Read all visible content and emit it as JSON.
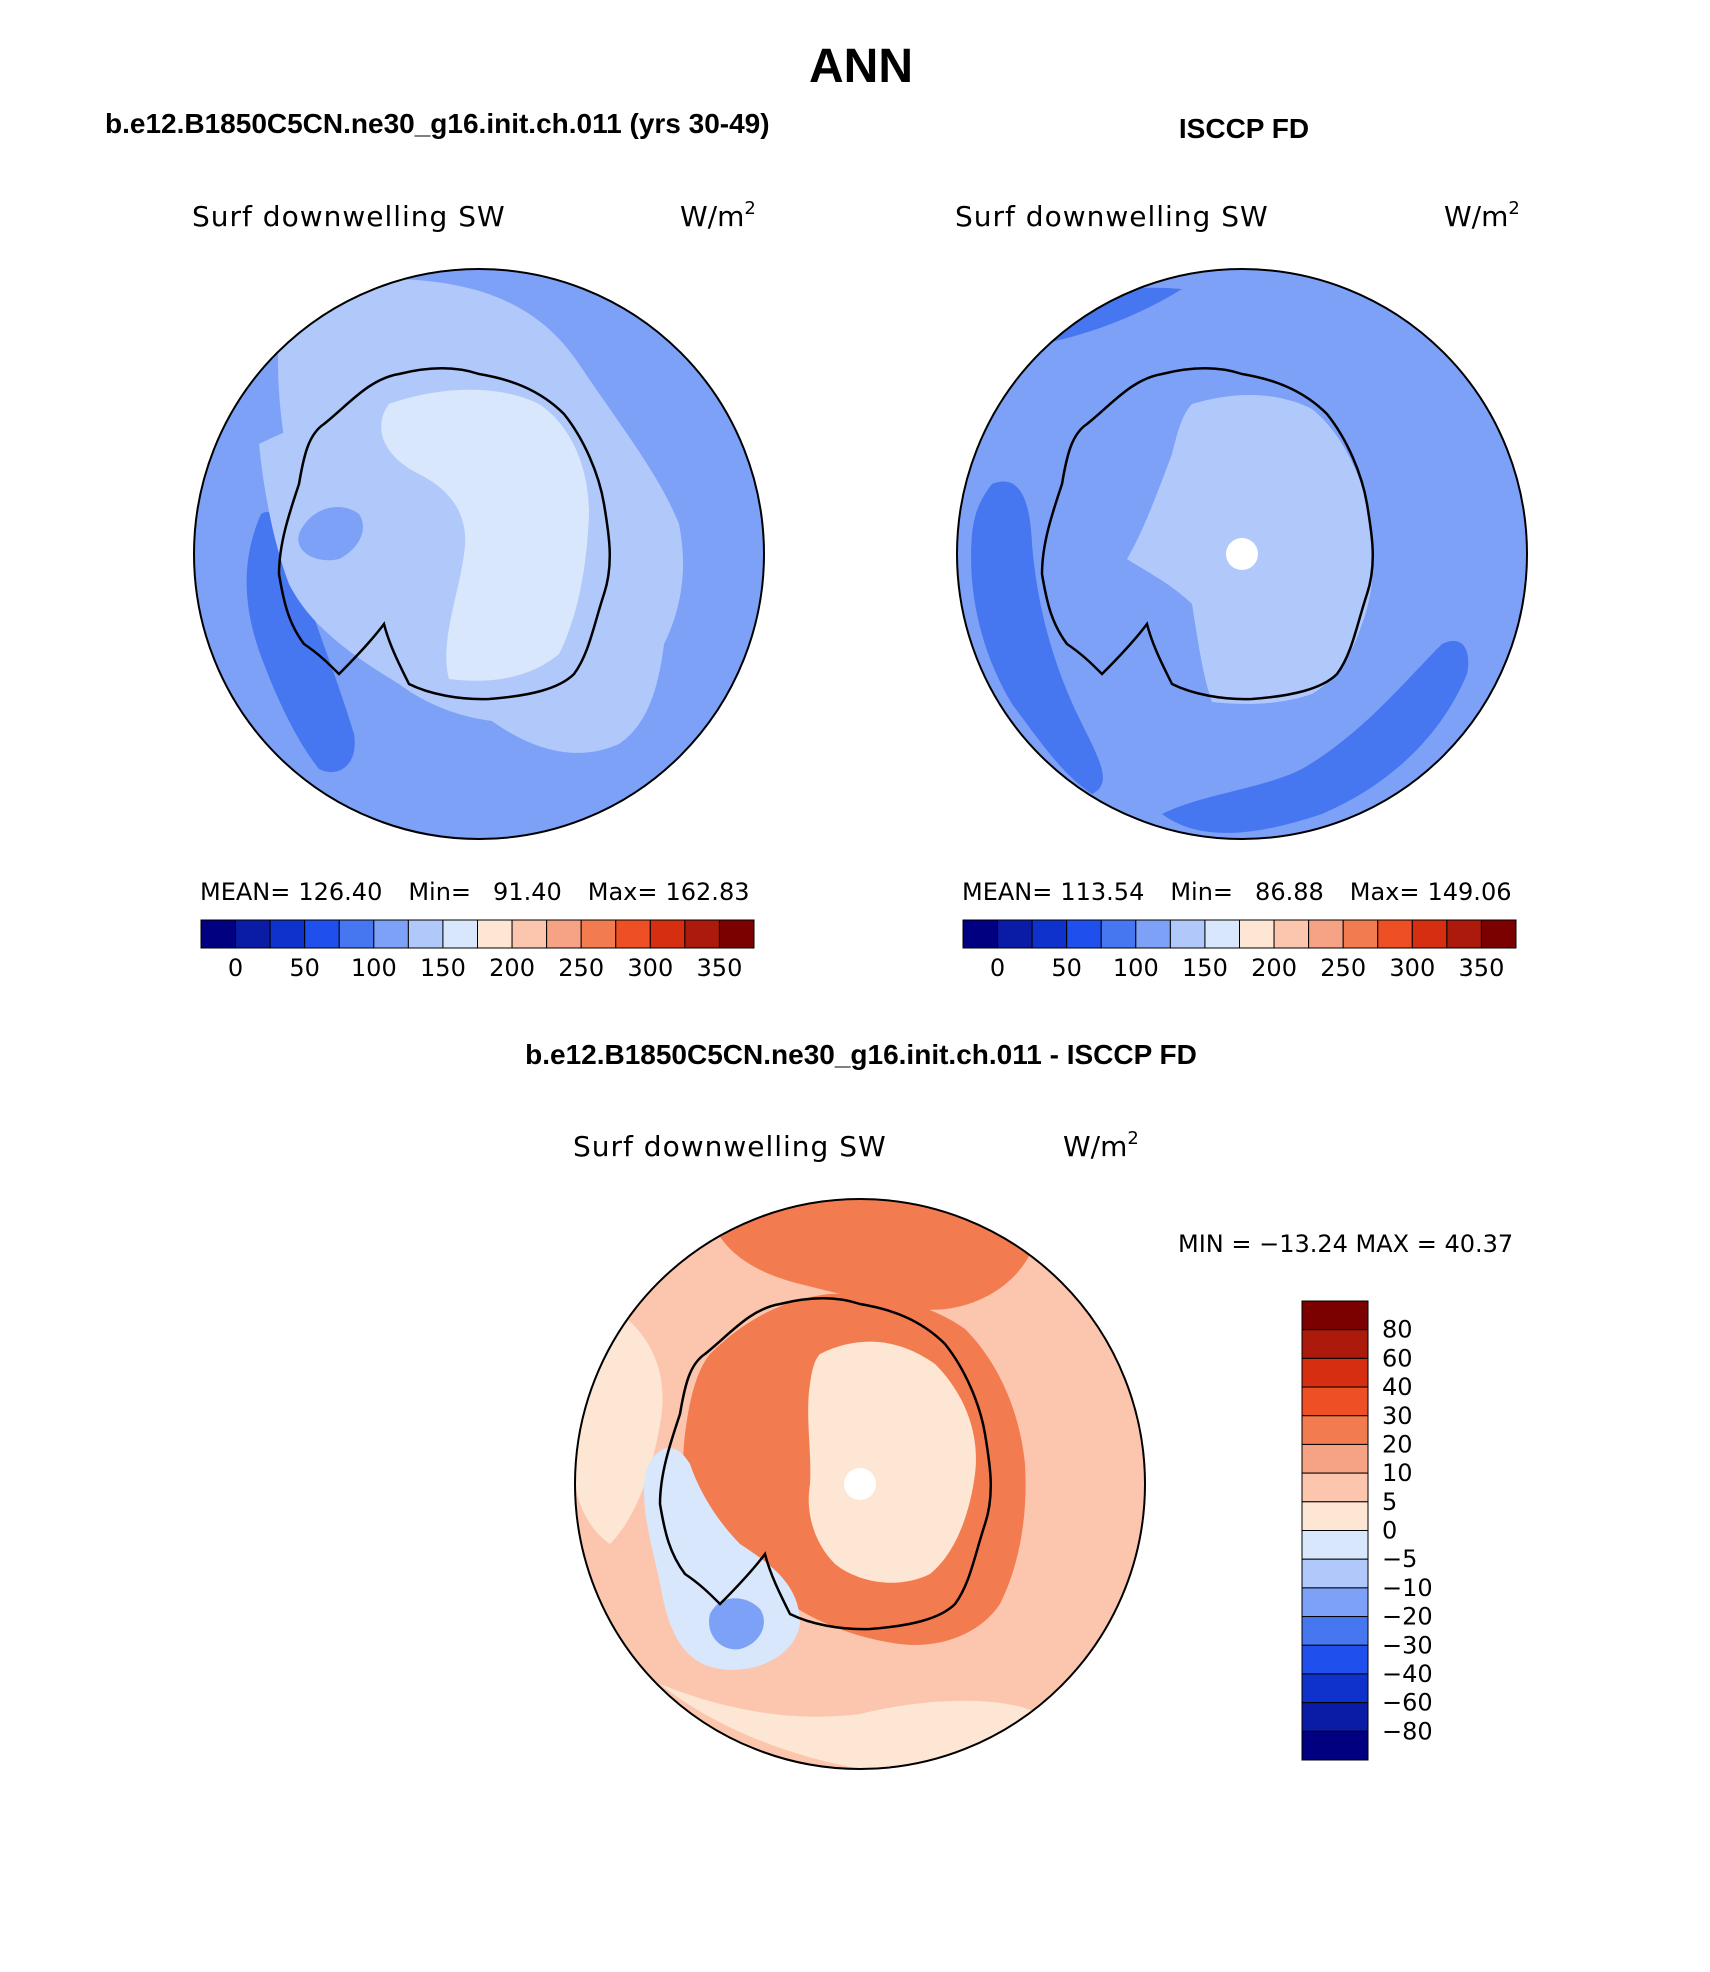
{
  "chart_data": [
    {
      "type": "heatmap",
      "projection": "south-polar-stereographic",
      "figure_title": "ANN",
      "title": "b.e12.B1850C5CN.ne30_g16.init.ch.011 (yrs 30-49)",
      "variable": "Surf downwelling SW",
      "units_base": "W/m",
      "units_exp": "2",
      "stats": {
        "mean_label": "MEAN=",
        "mean": "126.40",
        "min_label": "Min=",
        "min": "91.40",
        "max_label": "Max=",
        "max": "162.83"
      },
      "colorbar_ticks": [
        "0",
        "50",
        "100",
        "150",
        "200",
        "250",
        "300",
        "350"
      ],
      "regions": [
        {
          "name": "open-ocean",
          "level": 110
        },
        {
          "name": "southern-pacific-minimum",
          "level": 95
        },
        {
          "name": "antarctic-margin-ring",
          "level": 135
        },
        {
          "name": "pacific-high-zone",
          "level": 135
        },
        {
          "name": "east-antarctic-plateau",
          "level": 155
        }
      ]
    },
    {
      "type": "heatmap",
      "projection": "south-polar-stereographic",
      "title": "ISCCP FD",
      "variable": "Surf downwelling SW",
      "units_base": "W/m",
      "units_exp": "2",
      "stats": {
        "mean_label": "MEAN=",
        "mean": "113.54",
        "min_label": "Min=",
        "min": "86.88",
        "max_label": "Max=",
        "max": "149.06"
      },
      "colorbar_ticks": [
        "0",
        "50",
        "100",
        "150",
        "200",
        "250",
        "300",
        "350"
      ],
      "regions": [
        {
          "name": "open-ocean",
          "level": 110
        },
        {
          "name": "pacific-minimum-band",
          "level": 95
        },
        {
          "name": "atlantic-minimum-band",
          "level": 95
        },
        {
          "name": "antarctic-continent",
          "level": 135
        },
        {
          "name": "pole-missing",
          "level": null
        }
      ]
    },
    {
      "type": "heatmap",
      "projection": "south-polar-stereographic",
      "title": "b.e12.B1850C5CN.ne30_g16.init.ch.011 - ISCCP FD",
      "variable": "Surf downwelling SW",
      "units_base": "W/m",
      "units_exp": "2",
      "minmax_text": "MIN = −13.24 MAX =  40.37",
      "min": -13.24,
      "max": 40.37,
      "levels": [
        "80",
        "60",
        "40",
        "30",
        "20",
        "10",
        "5",
        "0",
        "−5",
        "−10",
        "−20",
        "−30",
        "−40",
        "−60",
        "−80"
      ],
      "regions": [
        {
          "name": "outer-ocean",
          "level": 2
        },
        {
          "name": "mid-ocean",
          "level": 15
        },
        {
          "name": "northern-high",
          "level": 25
        },
        {
          "name": "coastal-ring",
          "level": 25
        },
        {
          "name": "plateau",
          "level": 5
        },
        {
          "name": "weddell-negative",
          "level": -3
        },
        {
          "name": "weddell-core",
          "level": -15
        },
        {
          "name": "pole-missing",
          "level": null
        }
      ]
    }
  ],
  "colors": {
    "cont": [
      "#000080",
      "#0a1ba6",
      "#0f32cc",
      "#1f4fec",
      "#4777f0",
      "#7ca1f7",
      "#b1c8fb",
      "#d9e7fd",
      "#fde6d3",
      "#fbc6ad",
      "#f6a285",
      "#f27b4f",
      "#ef4f24",
      "#d62e10",
      "#ab1a0a",
      "#7b0000"
    ],
    "diff": [
      "#000080",
      "#0a1ba6",
      "#0f32cc",
      "#1f4fec",
      "#4777f0",
      "#7ca1f7",
      "#b1c8fb",
      "#d9e7fd",
      "#fde6d3",
      "#fbc6ad",
      "#f6a285",
      "#f27b4f",
      "#ef4f24",
      "#d62e10",
      "#ab1a0a",
      "#7b0000"
    ]
  }
}
